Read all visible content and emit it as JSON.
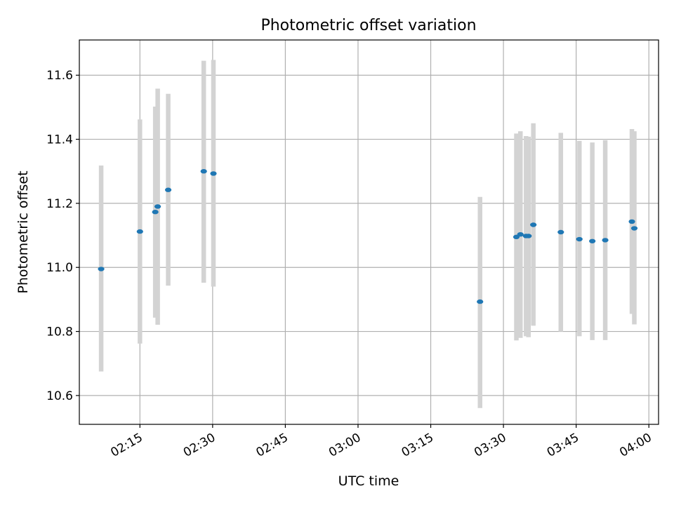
{
  "chart_data": {
    "type": "scatter",
    "title": "Photometric offset variation",
    "xlabel": "UTC time",
    "ylabel": "Photometric offset",
    "grid": true,
    "x_ticks": [
      "02:15",
      "02:30",
      "02:45",
      "03:00",
      "03:15",
      "03:30",
      "03:45",
      "04:00"
    ],
    "y_ticks": [
      10.6,
      10.8,
      11.0,
      11.2,
      11.4,
      11.6
    ],
    "xlim": [
      "02:02:30",
      "04:02:00"
    ],
    "ylim": [
      10.51,
      11.71
    ],
    "colors": {
      "point": "#1f77b4",
      "errorbar": "#d3d3d3",
      "grid": "#b0b0b0"
    },
    "points": [
      {
        "x": "02:07:00",
        "y": 10.995,
        "ylow": 10.675,
        "yhigh": 11.318
      },
      {
        "x": "02:15:00",
        "y": 11.112,
        "ylow": 10.762,
        "yhigh": 11.462
      },
      {
        "x": "02:18:10",
        "y": 11.173,
        "ylow": 10.843,
        "yhigh": 11.502
      },
      {
        "x": "02:18:40",
        "y": 11.19,
        "ylow": 10.821,
        "yhigh": 11.558
      },
      {
        "x": "02:20:50",
        "y": 11.242,
        "ylow": 10.943,
        "yhigh": 11.542
      },
      {
        "x": "02:28:10",
        "y": 11.3,
        "ylow": 10.952,
        "yhigh": 11.645
      },
      {
        "x": "02:30:10",
        "y": 11.293,
        "ylow": 10.94,
        "yhigh": 11.648
      },
      {
        "x": "03:25:10",
        "y": 10.893,
        "ylow": 10.561,
        "yhigh": 11.22
      },
      {
        "x": "03:32:40",
        "y": 11.095,
        "ylow": 10.772,
        "yhigh": 11.418
      },
      {
        "x": "03:33:30",
        "y": 11.103,
        "ylow": 10.78,
        "yhigh": 11.425
      },
      {
        "x": "03:34:40",
        "y": 11.098,
        "ylow": 10.785,
        "yhigh": 11.41
      },
      {
        "x": "03:35:10",
        "y": 11.098,
        "ylow": 10.782,
        "yhigh": 11.408
      },
      {
        "x": "03:36:10",
        "y": 11.133,
        "ylow": 10.818,
        "yhigh": 11.45
      },
      {
        "x": "03:41:50",
        "y": 11.11,
        "ylow": 10.8,
        "yhigh": 11.42
      },
      {
        "x": "03:45:40",
        "y": 11.088,
        "ylow": 10.785,
        "yhigh": 11.395
      },
      {
        "x": "03:48:20",
        "y": 11.082,
        "ylow": 10.773,
        "yhigh": 11.39
      },
      {
        "x": "03:51:00",
        "y": 11.085,
        "ylow": 10.773,
        "yhigh": 11.397
      },
      {
        "x": "03:56:30",
        "y": 11.143,
        "ylow": 10.855,
        "yhigh": 11.432
      },
      {
        "x": "03:57:00",
        "y": 11.122,
        "ylow": 10.822,
        "yhigh": 11.425
      }
    ]
  }
}
